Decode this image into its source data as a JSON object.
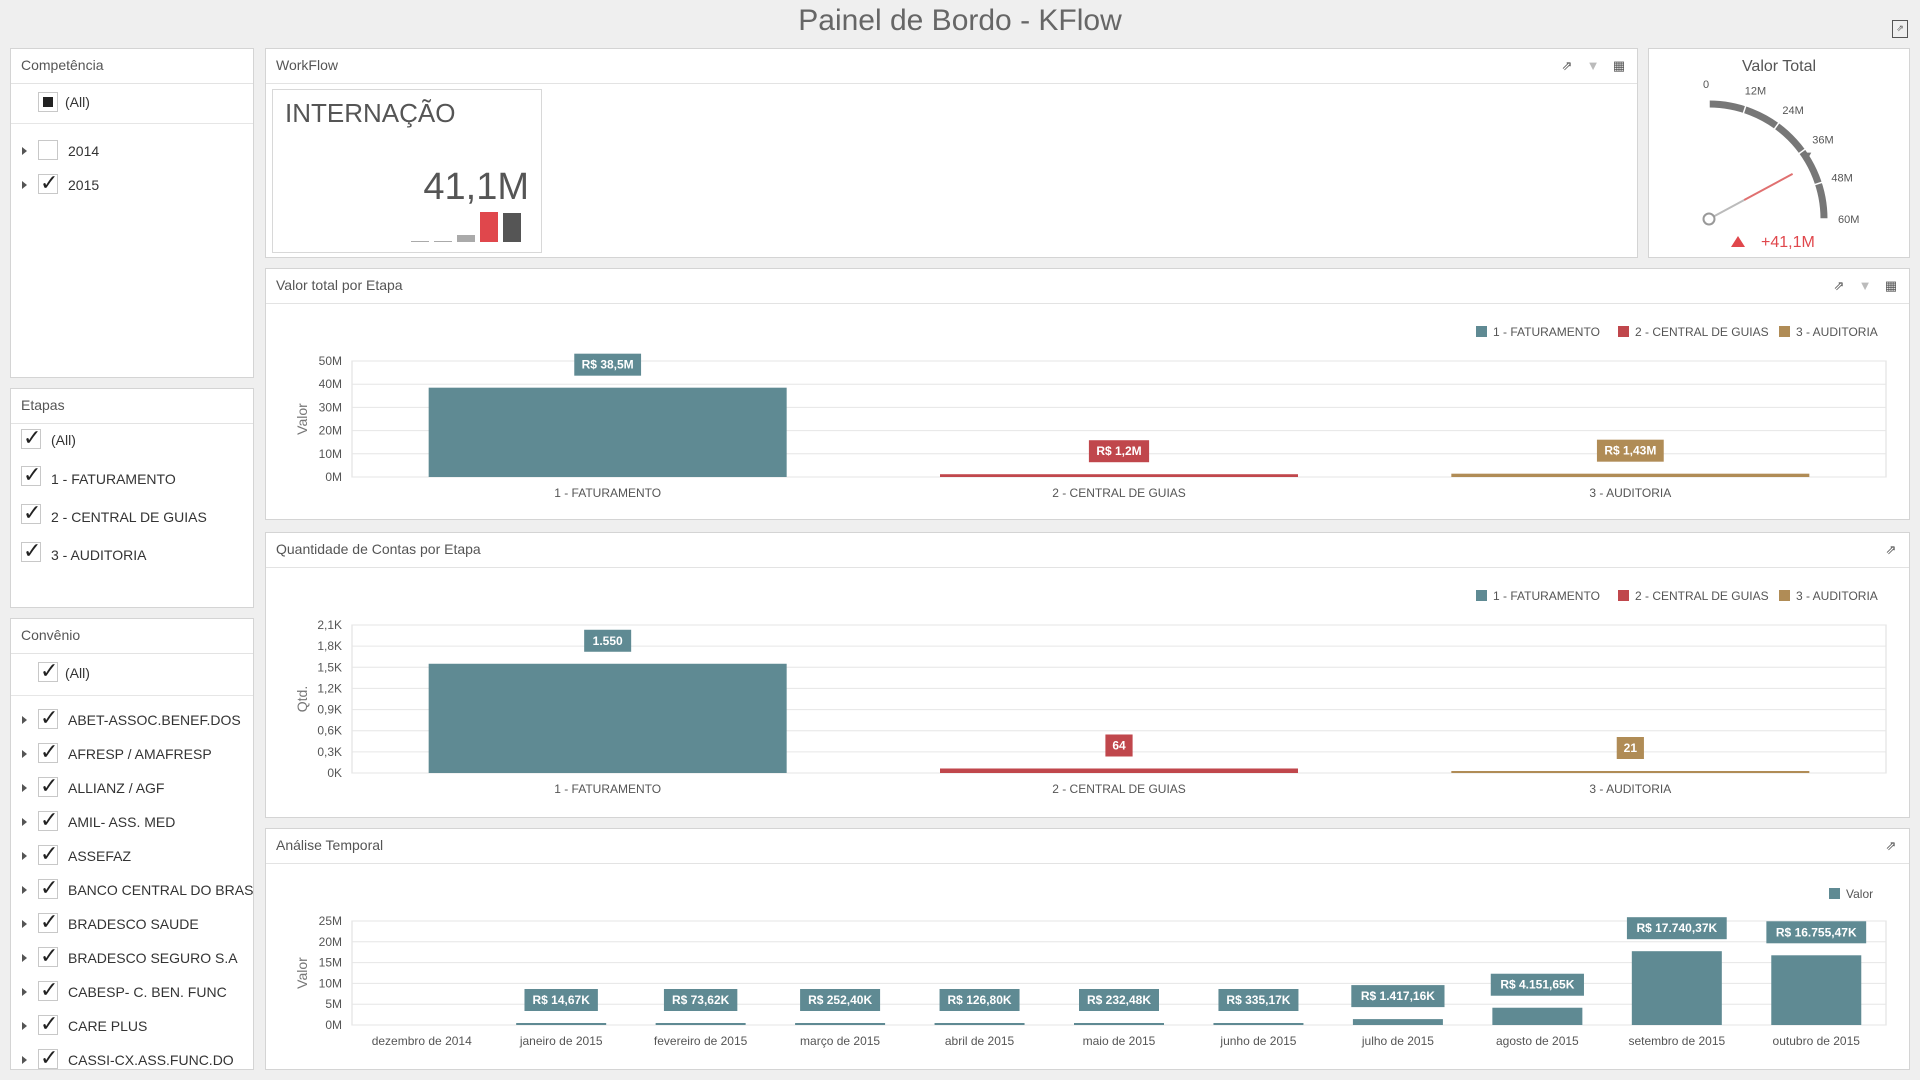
{
  "header": {
    "title": "Painel de Bordo - KFlow"
  },
  "filters": {
    "competencia": {
      "title": "Competência",
      "all_label": "(All)",
      "items": [
        {
          "label": "2014",
          "checked": false
        },
        {
          "label": "2015",
          "checked": true
        }
      ]
    },
    "etapas": {
      "title": "Etapas",
      "items": [
        {
          "label": "(All)",
          "checked": true
        },
        {
          "label": "1 - FATURAMENTO",
          "checked": true
        },
        {
          "label": "2 - CENTRAL DE GUIAS",
          "checked": true
        },
        {
          "label": "3 - AUDITORIA",
          "checked": true
        }
      ]
    },
    "convenio": {
      "title": "Convênio",
      "all_label": "(All)",
      "items": [
        {
          "label": "ABET-ASSOC.BENEF.DOS",
          "checked": true
        },
        {
          "label": "AFRESP / AMAFRESP",
          "checked": true
        },
        {
          "label": "ALLIANZ / AGF",
          "checked": true
        },
        {
          "label": "AMIL- ASS. MED",
          "checked": true
        },
        {
          "label": "ASSEFAZ",
          "checked": true
        },
        {
          "label": "BANCO CENTRAL DO BRASIL",
          "checked": true
        },
        {
          "label": "BRADESCO SAUDE",
          "checked": true
        },
        {
          "label": "BRADESCO SEGURO S.A",
          "checked": true
        },
        {
          "label": "CABESP- C. BEN. FUNC",
          "checked": true
        },
        {
          "label": "CARE PLUS",
          "checked": true
        },
        {
          "label": "CASSI-CX.ASS.FUNC.DO",
          "checked": true
        }
      ]
    }
  },
  "workflow": {
    "title": "WorkFlow",
    "card": {
      "title": "INTERNAÇÃO",
      "value": "41,1M"
    },
    "sparkline": [
      0.03,
      0.03,
      0.22,
      1.0,
      0.97
    ],
    "spark_colors": [
      "#aaaaaa",
      "#aaaaaa",
      "#aaaaaa",
      "#e0474c",
      "#555555"
    ]
  },
  "gauge": {
    "title": "Valor Total",
    "ticks": [
      "0",
      "12M",
      "24M",
      "36M",
      "48M",
      "60M"
    ],
    "min": 0,
    "max": 60,
    "value": 41.1,
    "target": 38.5,
    "delta_label": "+41,1M",
    "colors": {
      "scale": "#777777",
      "value": "#e07070",
      "delta": "#e0474c"
    }
  },
  "colors": {
    "faturamento": "#5f8a93",
    "central": "#c0474c",
    "auditoria": "#b08c56",
    "tool": "#555555"
  },
  "charts": {
    "valor_etapa": {
      "title": "Valor total por Etapa",
      "chart_data": {
        "type": "bar",
        "categories": [
          "1 - FATURAMENTO",
          "2 - CENTRAL DE GUIAS",
          "3 - AUDITORIA"
        ],
        "values": [
          38.5,
          1.2,
          1.43
        ],
        "labels": [
          "R$ 38,5M",
          "R$ 1,2M",
          "R$ 1,43M"
        ],
        "legend": [
          "1 - FATURAMENTO",
          "2 - CENTRAL DE GUIAS",
          "3 - AUDITORIA"
        ],
        "legend_position": "top-right",
        "ylabel": "Valor",
        "yticks": [
          "0M",
          "10M",
          "20M",
          "30M",
          "40M",
          "50M"
        ],
        "ylim": [
          0,
          50
        ],
        "grid": true
      }
    },
    "qtd_etapa": {
      "title": "Quantidade de Contas por Etapa",
      "chart_data": {
        "type": "bar",
        "categories": [
          "1 - FATURAMENTO",
          "2 - CENTRAL DE GUIAS",
          "3 - AUDITORIA"
        ],
        "values": [
          1550,
          64,
          21
        ],
        "labels": [
          "1.550",
          "64",
          "21"
        ],
        "legend": [
          "1 - FATURAMENTO",
          "2 - CENTRAL DE GUIAS",
          "3 - AUDITORIA"
        ],
        "legend_position": "top-right",
        "ylabel": "Qtd.",
        "yticks": [
          "0K",
          "0,3K",
          "0,6K",
          "0,9K",
          "1,2K",
          "1,5K",
          "1,8K",
          "2,1K"
        ],
        "ylim": [
          0,
          2100
        ],
        "grid": true
      }
    },
    "temporal": {
      "title": "Análise Temporal",
      "chart_data": {
        "type": "bar",
        "categories": [
          "dezembro de 2014",
          "janeiro de 2015",
          "fevereiro de 2015",
          "março de 2015",
          "abril de 2015",
          "maio de 2015",
          "junho de 2015",
          "julho de 2015",
          "agosto de 2015",
          "setembro de 2015",
          "outubro de 2015"
        ],
        "values": [
          0,
          14.67,
          73.62,
          252.4,
          126.8,
          232.48,
          335.17,
          1417.16,
          4151.65,
          17740.37,
          16755.47
        ],
        "labels": [
          "",
          "R$ 14,67K",
          "R$ 73,62K",
          "R$ 252,40K",
          "R$ 126,80K",
          "R$ 232,48K",
          "R$ 335,17K",
          "R$ 1.417,16K",
          "R$ 4.151,65K",
          "R$ 17.740,37K",
          "R$ 16.755,47K"
        ],
        "legend": [
          "Valor"
        ],
        "legend_position": "top-right",
        "ylabel": "Valor",
        "yticks": [
          "0M",
          "5M",
          "10M",
          "15M",
          "20M",
          "25M"
        ],
        "ylim": [
          0,
          25000
        ],
        "grid": true
      }
    }
  }
}
